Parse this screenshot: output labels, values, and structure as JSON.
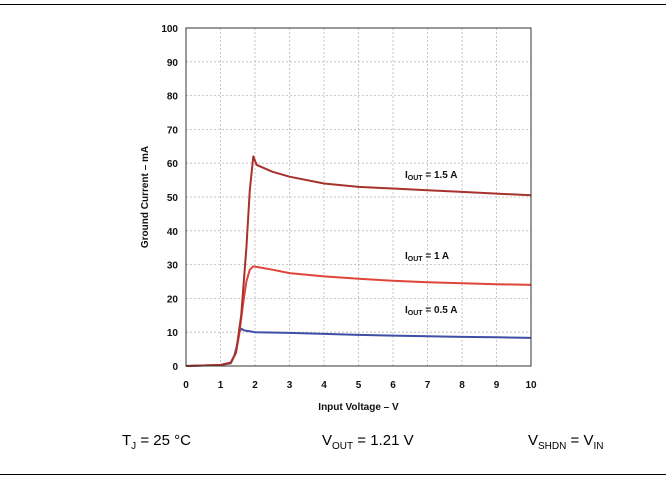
{
  "chart_data": {
    "type": "line",
    "title": "",
    "xlabel": "Input Voltage – V",
    "ylabel": "Ground Current – mA",
    "xlim": [
      0,
      10
    ],
    "ylim": [
      0,
      100
    ],
    "x_ticks": [
      "0",
      "1",
      "2",
      "3",
      "4",
      "5",
      "6",
      "7",
      "8",
      "9",
      "10"
    ],
    "y_ticks": [
      "0",
      "10",
      "20",
      "30",
      "40",
      "50",
      "60",
      "70",
      "80",
      "90",
      "100"
    ],
    "grid": true,
    "series": [
      {
        "name": "I_OUT = 1.5 A",
        "label_main": "I",
        "label_sub": "OUT",
        "label_rest": " = 1.5 A",
        "color": "#a8312c",
        "x": [
          0,
          1.0,
          1.3,
          1.45,
          1.6,
          1.75,
          1.85,
          1.95,
          2.05,
          2.5,
          3,
          4,
          5,
          6,
          7,
          8,
          9,
          10
        ],
        "y": [
          0,
          0.3,
          1,
          4,
          15,
          35,
          52,
          62,
          59.5,
          57.5,
          56,
          54,
          53,
          52.5,
          52,
          51.5,
          51,
          50.5
        ]
      },
      {
        "name": "I_OUT = 1 A",
        "label_main": "I",
        "label_sub": "OUT",
        "label_rest": " = 1 A",
        "color": "#e0443a",
        "x": [
          0,
          1.0,
          1.3,
          1.45,
          1.55,
          1.65,
          1.75,
          1.85,
          1.95,
          2.5,
          3,
          4,
          5,
          6,
          7,
          8,
          9,
          10
        ],
        "y": [
          0,
          0.3,
          1,
          4,
          10,
          18,
          25,
          28.5,
          29.5,
          28.5,
          27.5,
          26.5,
          25.8,
          25.2,
          24.8,
          24.5,
          24.2,
          24
        ]
      },
      {
        "name": "I_OUT = 0.5 A",
        "label_main": "I",
        "label_sub": "OUT",
        "label_rest": " = 0.5 A",
        "color": "#3e4fa8",
        "x": [
          0,
          1.0,
          1.3,
          1.4,
          1.5,
          1.55,
          1.6,
          1.7,
          2,
          3,
          4,
          5,
          6,
          7,
          8,
          9,
          10
        ],
        "y": [
          0,
          0.3,
          0.8,
          3,
          7,
          10,
          11,
          10.5,
          10,
          9.8,
          9.5,
          9.2,
          9,
          8.8,
          8.6,
          8.5,
          8.3
        ]
      }
    ]
  },
  "conditions": [
    {
      "main": "T",
      "sub": "J",
      "rest": " = 25 °C"
    },
    {
      "main": "V",
      "sub": "OUT",
      "rest": " = 1.21 V"
    },
    {
      "main": "V",
      "sub": "SHDN",
      "rest": " = V",
      "sub2": "IN"
    }
  ]
}
